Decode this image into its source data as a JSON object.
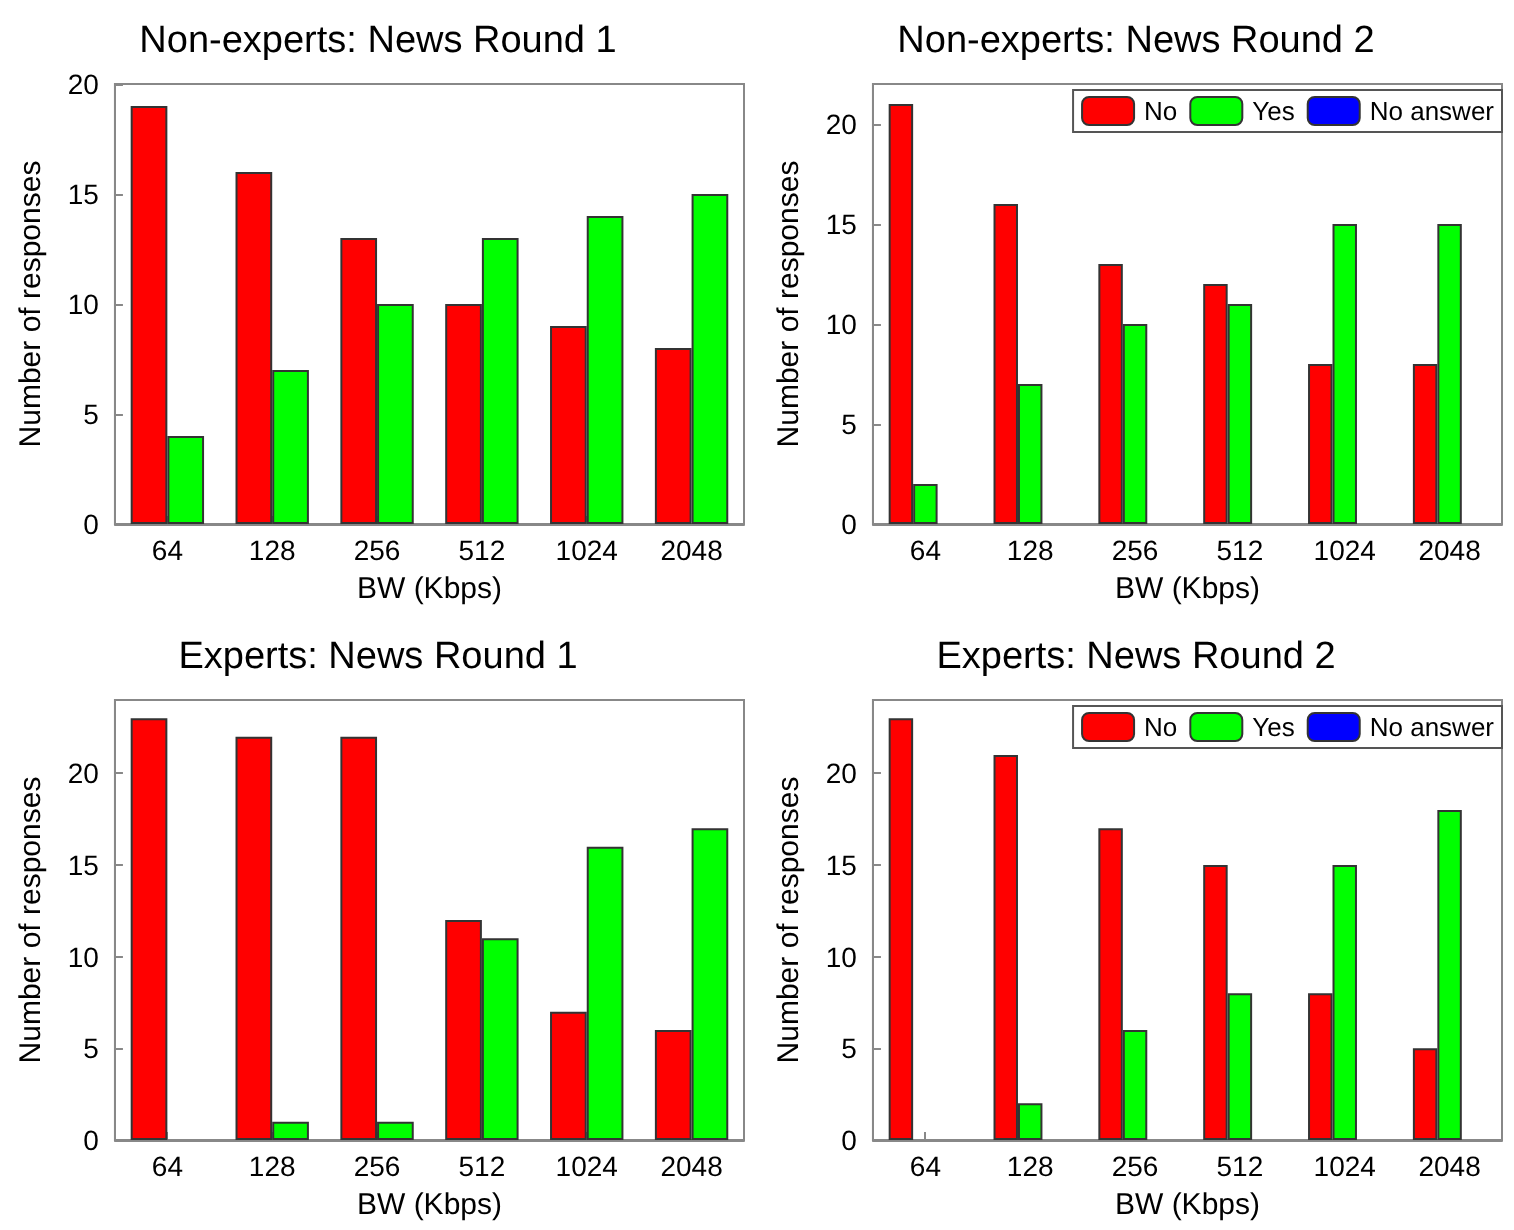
{
  "chart_data": [
    {
      "type": "bar",
      "title": "Non-experts: News Round 1",
      "xlabel": "BW (Kbps)",
      "ylabel": "Number of responses",
      "categories": [
        "64",
        "128",
        "256",
        "512",
        "1024",
        "2048"
      ],
      "series": [
        {
          "color": "#ff0000",
          "values": [
            19,
            16,
            13,
            10,
            9,
            8
          ]
        },
        {
          "color": "#00ff00",
          "values": [
            4,
            7,
            10,
            13,
            14,
            15
          ]
        }
      ],
      "ylim": [
        0,
        20
      ],
      "yticks": [
        0,
        5,
        10,
        15,
        20
      ],
      "grid": false,
      "legend": false
    },
    {
      "type": "bar",
      "title": "Non-experts: News Round 2",
      "xlabel": "BW (Kbps)",
      "ylabel": "Number of responses",
      "categories": [
        "64",
        "128",
        "256",
        "512",
        "1024",
        "2048"
      ],
      "series": [
        {
          "name": "No",
          "color": "#ff0000",
          "values": [
            21,
            16,
            13,
            12,
            8,
            8
          ]
        },
        {
          "name": "Yes",
          "color": "#00ff00",
          "values": [
            2,
            7,
            10,
            11,
            15,
            15
          ]
        },
        {
          "name": "No answer",
          "color": "#0000ff",
          "values": [
            0,
            0,
            0,
            0,
            0,
            0
          ]
        }
      ],
      "ylim": [
        0,
        22
      ],
      "yticks": [
        0,
        5,
        10,
        15,
        20
      ],
      "grid": false,
      "legend": "top right"
    },
    {
      "type": "bar",
      "title": "Experts: News Round 1",
      "xlabel": "BW (Kbps)",
      "ylabel": "Number of responses",
      "categories": [
        "64",
        "128",
        "256",
        "512",
        "1024",
        "2048"
      ],
      "series": [
        {
          "color": "#ff0000",
          "values": [
            23,
            22,
            22,
            12,
            7,
            6
          ]
        },
        {
          "color": "#00ff00",
          "values": [
            0,
            1,
            1,
            11,
            16,
            17
          ]
        }
      ],
      "ylim": [
        0,
        24
      ],
      "yticks": [
        0,
        5,
        10,
        15,
        20
      ],
      "grid": false,
      "legend": false
    },
    {
      "type": "bar",
      "title": "Experts: News Round 2",
      "xlabel": "BW (Kbps)",
      "ylabel": "Number of responses",
      "categories": [
        "64",
        "128",
        "256",
        "512",
        "1024",
        "2048"
      ],
      "series": [
        {
          "name": "No",
          "color": "#ff0000",
          "values": [
            23,
            21,
            17,
            15,
            8,
            5
          ]
        },
        {
          "name": "Yes",
          "color": "#00ff00",
          "values": [
            0,
            2,
            6,
            8,
            15,
            18
          ]
        },
        {
          "name": "No answer",
          "color": "#0000ff",
          "values": [
            0,
            0,
            0,
            0,
            0,
            0
          ]
        }
      ],
      "ylim": [
        0,
        24
      ],
      "yticks": [
        0,
        5,
        10,
        15,
        20
      ],
      "grid": false,
      "legend": "top right"
    }
  ]
}
